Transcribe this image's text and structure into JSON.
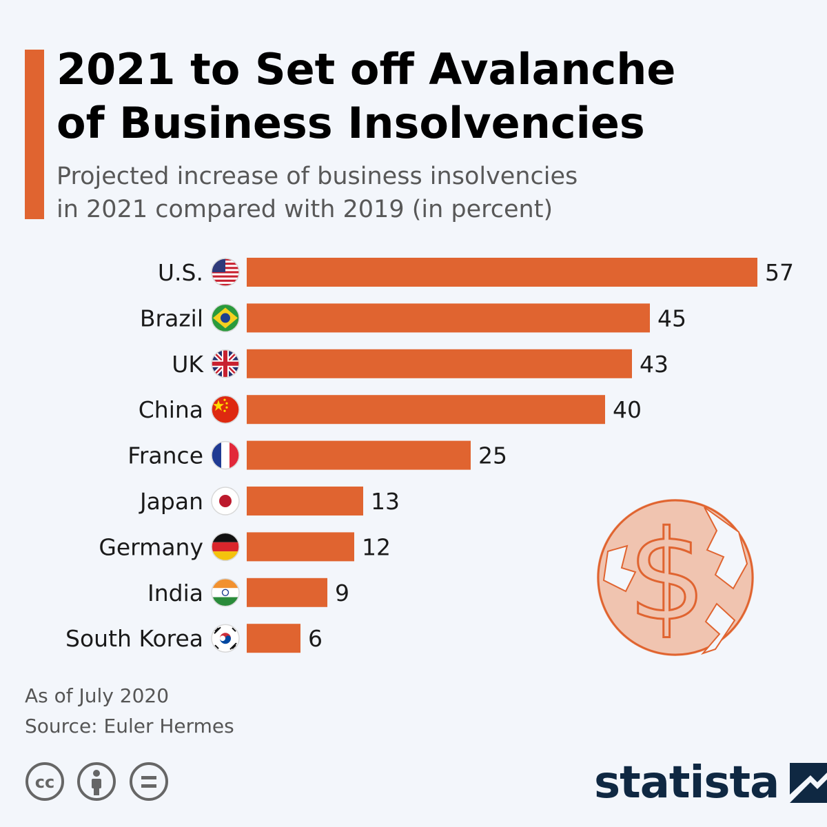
{
  "header": {
    "title_line1": "2021 to Set off Avalanche",
    "title_line2": "of Business Insolvencies",
    "subtitle_line1": "Projected increase of business insolvencies",
    "subtitle_line2": "in 2021 compared with 2019 (in percent)"
  },
  "chart_data": {
    "type": "bar",
    "orientation": "horizontal",
    "title": "2021 to Set off Avalanche of Business Insolvencies",
    "subtitle": "Projected increase of business insolvencies in 2021 compared with 2019 (in percent)",
    "categories": [
      "U.S.",
      "Brazil",
      "UK",
      "China",
      "France",
      "Japan",
      "Germany",
      "India",
      "South Korea"
    ],
    "values": [
      57,
      45,
      43,
      40,
      25,
      13,
      12,
      9,
      6
    ],
    "flags": [
      "us-flag-icon",
      "brazil-flag-icon",
      "uk-flag-icon",
      "china-flag-icon",
      "france-flag-icon",
      "japan-flag-icon",
      "germany-flag-icon",
      "india-flag-icon",
      "south-korea-flag-icon"
    ],
    "xlim": [
      0,
      57
    ],
    "bar_color": "#e06430",
    "xlabel": "",
    "ylabel": ""
  },
  "footer": {
    "as_of": "As of July 2020",
    "source": "Source: Euler Hermes"
  },
  "branding": {
    "logo_text": "statista",
    "logo_color": "#0f2842"
  },
  "illustration": {
    "icon": "broken-dollar-coin-icon",
    "dollar_sign": "$"
  }
}
